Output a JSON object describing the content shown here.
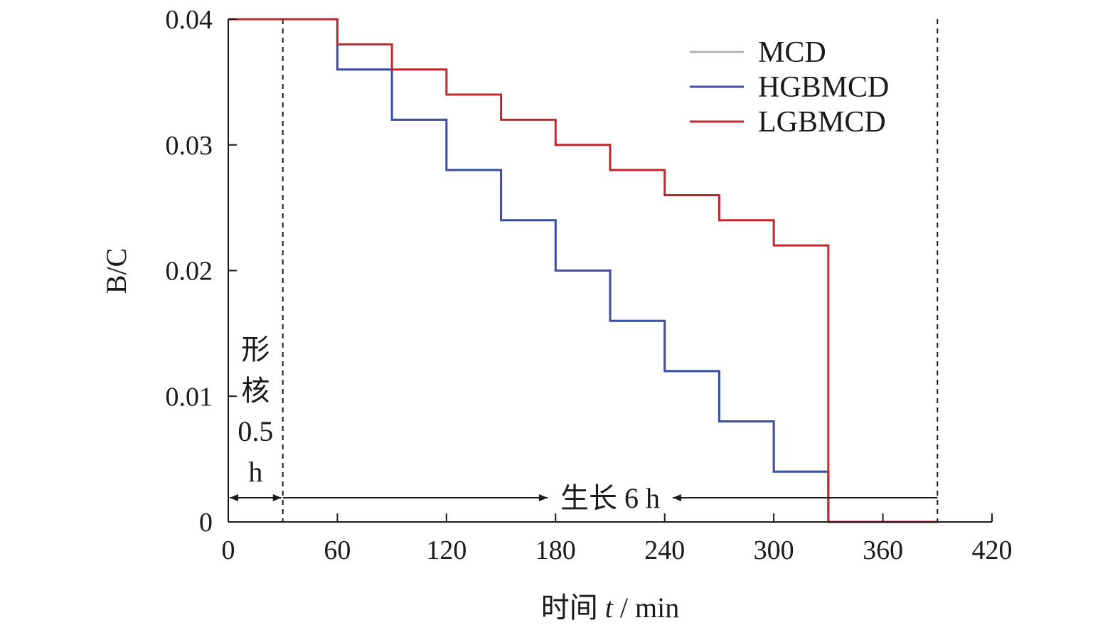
{
  "chart_data": {
    "type": "line",
    "xlabel_prefix": "时间 ",
    "xlabel_var": "t",
    "xlabel_suffix": " / min",
    "ylabel": "B/C",
    "xlim": [
      0,
      420
    ],
    "ylim": [
      0,
      0.04
    ],
    "x_ticks": [
      0,
      60,
      120,
      180,
      240,
      300,
      360,
      420
    ],
    "x_tick_labels": [
      "0",
      "60",
      "120",
      "180",
      "240",
      "300",
      "360",
      "420"
    ],
    "y_ticks": [
      0,
      0.01,
      0.02,
      0.03,
      0.04
    ],
    "y_tick_labels": [
      "0",
      "0.01",
      "0.02",
      "0.03",
      "0.04"
    ],
    "grid": false,
    "legend_position": "top-right",
    "step": true,
    "series": [
      {
        "name": "MCD",
        "color": "#b3b3b3",
        "x": [
          0,
          30,
          60,
          90,
          120,
          150,
          180,
          210,
          240,
          270,
          300,
          330,
          360,
          390
        ],
        "y": [
          0.04,
          0.04,
          0.036,
          0.032,
          0.028,
          0.024,
          0.02,
          0.016,
          0.012,
          0.008,
          0.004,
          0.0,
          0.0,
          0.0
        ]
      },
      {
        "name": "HGBMCD",
        "color": "#3b4fa3",
        "x": [
          0,
          30,
          60,
          90,
          120,
          150,
          180,
          210,
          240,
          270,
          300,
          330,
          360,
          390
        ],
        "y": [
          0.04,
          0.04,
          0.036,
          0.032,
          0.028,
          0.024,
          0.02,
          0.016,
          0.012,
          0.008,
          0.004,
          0.0,
          0.0,
          0.0
        ]
      },
      {
        "name": "LGBMCD",
        "color": "#c1272d",
        "x": [
          0,
          30,
          60,
          90,
          120,
          150,
          180,
          210,
          240,
          270,
          300,
          330,
          360,
          390
        ],
        "y": [
          0.04,
          0.04,
          0.038,
          0.036,
          0.034,
          0.032,
          0.03,
          0.028,
          0.026,
          0.024,
          0.022,
          0.0,
          0.0,
          0.0
        ]
      }
    ],
    "reference_lines_x": [
      30,
      390
    ],
    "annotations": {
      "nucleation_chars": [
        "形",
        "核",
        "0.5",
        "h"
      ],
      "nucleation_range": [
        0,
        30
      ],
      "growth_label": "生长 6 h",
      "growth_range": [
        30,
        390
      ]
    }
  }
}
